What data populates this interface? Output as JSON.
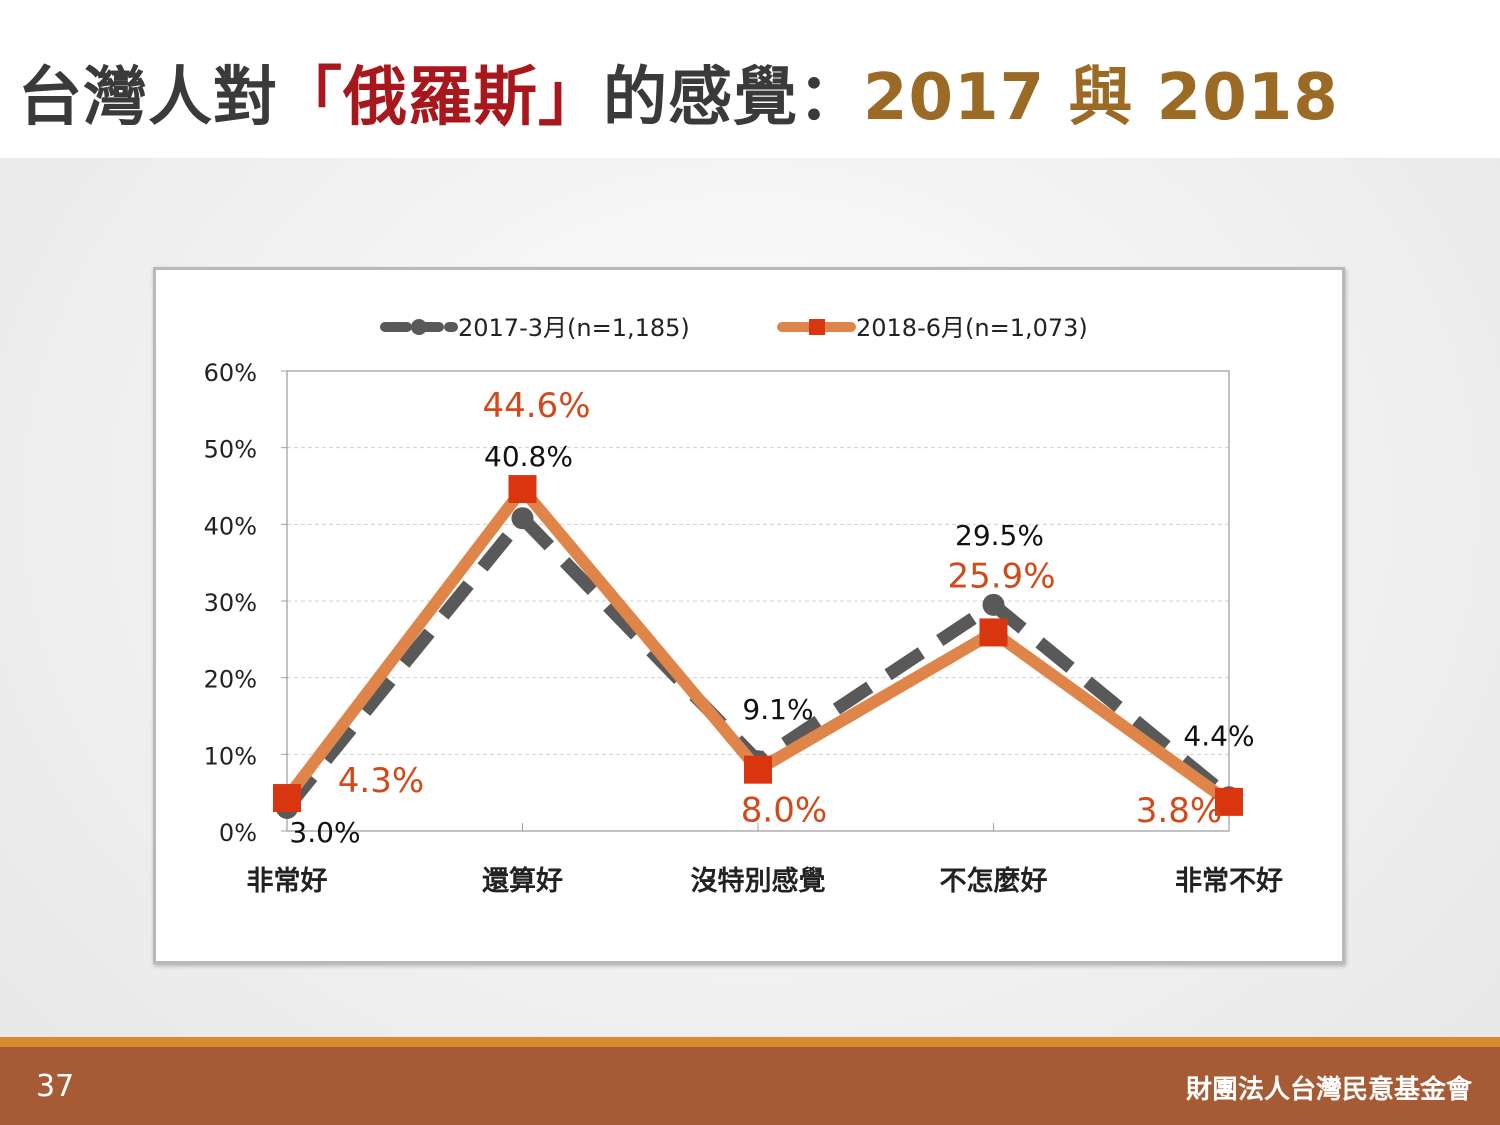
{
  "title": {
    "part1": "台灣人對",
    "part2": "「俄羅斯」",
    "part3": "的感覺：",
    "part4": "2017 與 2018"
  },
  "colors": {
    "title_text": "#3a3a3a",
    "title_highlight": "#a8171c",
    "title_years": "#9b6a24",
    "series_2017": "#595959",
    "series_2018_line": "#e0854a",
    "series_2018_marker": "#d9360f",
    "label_2018": "#d24a1a",
    "footer_bar": "#a65b35",
    "footer_stripe": "#d98c2f"
  },
  "chart_data": {
    "type": "line",
    "categories": [
      "非常好",
      "還算好",
      "沒特別感覺",
      "不怎麼好",
      "非常不好"
    ],
    "yticks": [
      "0%",
      "10%",
      "20%",
      "30%",
      "40%",
      "50%",
      "60%"
    ],
    "ylim": [
      0,
      60
    ],
    "grid": true,
    "legend_position": "top",
    "series": [
      {
        "name": "2017-3月(n=1,185)",
        "values": [
          3.0,
          40.8,
          9.1,
          29.5,
          4.4
        ],
        "labels": [
          "3.0%",
          "40.8%",
          "9.1%",
          "29.5%",
          "4.4%"
        ],
        "style": "dashed",
        "marker": "circle"
      },
      {
        "name": "2018-6月(n=1,073)",
        "values": [
          4.3,
          44.6,
          8.0,
          25.9,
          3.8
        ],
        "labels": [
          "4.3%",
          "44.6%",
          "8.0%",
          "25.9%",
          "3.8%"
        ],
        "style": "solid",
        "marker": "square"
      }
    ]
  },
  "footer": {
    "page_number": "37",
    "organization": "財團法人台灣民意基金會"
  }
}
